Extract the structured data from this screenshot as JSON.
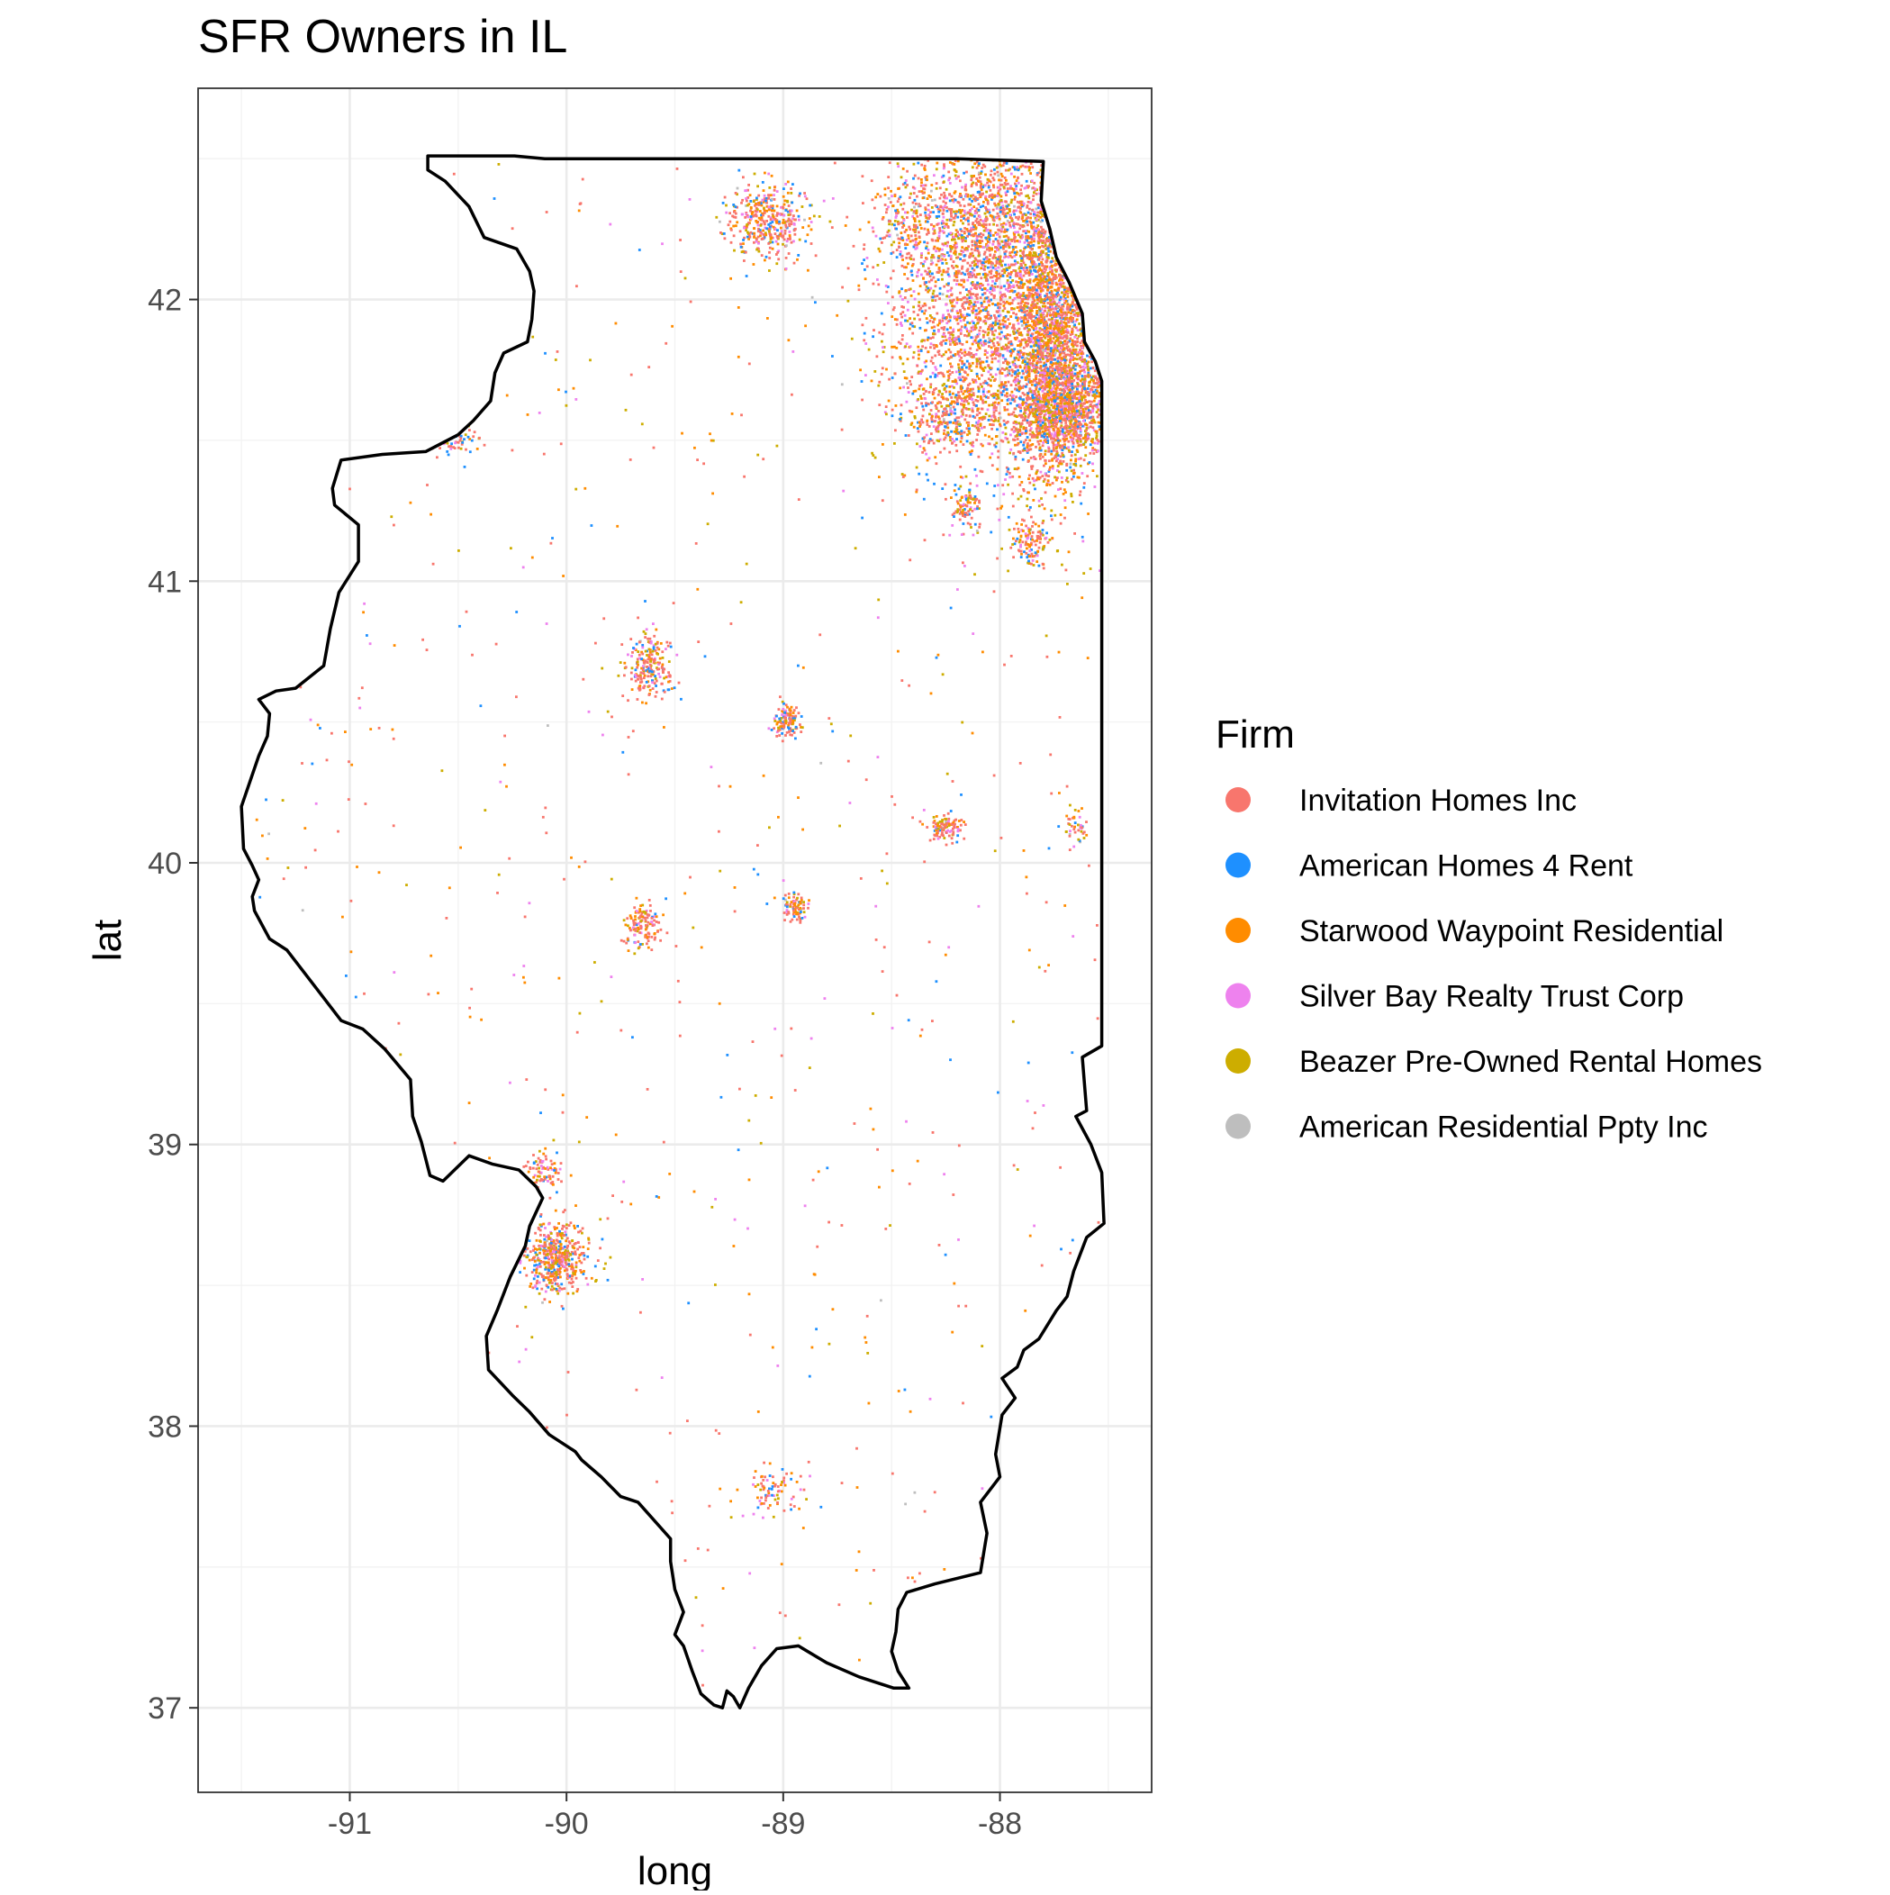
{
  "chart_data": {
    "type": "scatter",
    "title": "SFR Owners in IL",
    "xlabel": "long",
    "ylabel": "lat",
    "xlim": [
      -91.7,
      -87.3
    ],
    "ylim": [
      36.7,
      42.75
    ],
    "x_ticks": [
      -91,
      -90,
      -89,
      -88
    ],
    "y_ticks": [
      37,
      38,
      39,
      40,
      41,
      42
    ],
    "x_tick_labels": [
      "-91",
      "-90",
      "-89",
      "-88"
    ],
    "y_tick_labels": [
      "37",
      "38",
      "39",
      "40",
      "41",
      "42"
    ],
    "grid": true,
    "legend": {
      "title": "Firm",
      "position": "right",
      "entries": [
        {
          "name": "Invitation Homes Inc",
          "color": "#F8766D"
        },
        {
          "name": "American Homes 4 Rent",
          "color": "#1E90FF"
        },
        {
          "name": "Starwood Waypoint Residential",
          "color": "#FF8C00"
        },
        {
          "name": "Silver Bay Realty Trust Corp",
          "color": "#EE82EE"
        },
        {
          "name": "Beazer Pre-Owned Rental Homes",
          "color": "#CDAD00"
        },
        {
          "name": "American Residential Ppty Inc",
          "color": "#BEBEBE"
        }
      ]
    },
    "state_outline": [
      [
        -90.64,
        42.51
      ],
      [
        -90.24,
        42.51
      ],
      [
        -90.1,
        42.5
      ],
      [
        -89.7,
        42.5
      ],
      [
        -88.9,
        42.5
      ],
      [
        -88.2,
        42.5
      ],
      [
        -87.8,
        42.49
      ],
      [
        -87.81,
        42.35
      ],
      [
        -87.77,
        42.25
      ],
      [
        -87.74,
        42.15
      ],
      [
        -87.68,
        42.06
      ],
      [
        -87.62,
        41.95
      ],
      [
        -87.61,
        41.85
      ],
      [
        -87.56,
        41.78
      ],
      [
        -87.53,
        41.71
      ],
      [
        -87.53,
        41.5
      ],
      [
        -87.53,
        41.0
      ],
      [
        -87.53,
        40.5
      ],
      [
        -87.53,
        40.0
      ],
      [
        -87.53,
        39.6
      ],
      [
        -87.53,
        39.35
      ],
      [
        -87.62,
        39.31
      ],
      [
        -87.6,
        39.12
      ],
      [
        -87.65,
        39.1
      ],
      [
        -87.58,
        39.0
      ],
      [
        -87.53,
        38.9
      ],
      [
        -87.52,
        38.72
      ],
      [
        -87.6,
        38.67
      ],
      [
        -87.66,
        38.55
      ],
      [
        -87.69,
        38.46
      ],
      [
        -87.74,
        38.41
      ],
      [
        -87.82,
        38.31
      ],
      [
        -87.89,
        38.27
      ],
      [
        -87.92,
        38.21
      ],
      [
        -87.99,
        38.17
      ],
      [
        -87.93,
        38.1
      ],
      [
        -87.99,
        38.04
      ],
      [
        -88.02,
        37.9
      ],
      [
        -88.0,
        37.82
      ],
      [
        -88.09,
        37.73
      ],
      [
        -88.06,
        37.62
      ],
      [
        -88.09,
        37.48
      ],
      [
        -88.3,
        37.44
      ],
      [
        -88.43,
        37.41
      ],
      [
        -88.47,
        37.35
      ],
      [
        -88.48,
        37.27
      ],
      [
        -88.5,
        37.2
      ],
      [
        -88.47,
        37.13
      ],
      [
        -88.42,
        37.07
      ],
      [
        -88.49,
        37.07
      ],
      [
        -88.65,
        37.11
      ],
      [
        -88.8,
        37.16
      ],
      [
        -88.93,
        37.22
      ],
      [
        -89.03,
        37.21
      ],
      [
        -89.1,
        37.15
      ],
      [
        -89.16,
        37.07
      ],
      [
        -89.2,
        37.0
      ],
      [
        -89.23,
        37.04
      ],
      [
        -89.26,
        37.06
      ],
      [
        -89.28,
        37.0
      ],
      [
        -89.32,
        37.01
      ],
      [
        -89.38,
        37.05
      ],
      [
        -89.42,
        37.13
      ],
      [
        -89.46,
        37.22
      ],
      [
        -89.5,
        37.26
      ],
      [
        -89.46,
        37.34
      ],
      [
        -89.5,
        37.42
      ],
      [
        -89.52,
        37.52
      ],
      [
        -89.52,
        37.6
      ],
      [
        -89.67,
        37.73
      ],
      [
        -89.75,
        37.75
      ],
      [
        -89.84,
        37.82
      ],
      [
        -89.93,
        37.88
      ],
      [
        -89.96,
        37.91
      ],
      [
        -90.08,
        37.97
      ],
      [
        -90.17,
        38.05
      ],
      [
        -90.25,
        38.11
      ],
      [
        -90.36,
        38.2
      ],
      [
        -90.37,
        38.32
      ],
      [
        -90.32,
        38.41
      ],
      [
        -90.26,
        38.53
      ],
      [
        -90.19,
        38.64
      ],
      [
        -90.17,
        38.71
      ],
      [
        -90.11,
        38.81
      ],
      [
        -90.14,
        38.85
      ],
      [
        -90.22,
        38.91
      ],
      [
        -90.34,
        38.93
      ],
      [
        -90.45,
        38.96
      ],
      [
        -90.57,
        38.87
      ],
      [
        -90.63,
        38.89
      ],
      [
        -90.67,
        39.01
      ],
      [
        -90.71,
        39.1
      ],
      [
        -90.72,
        39.23
      ],
      [
        -90.84,
        39.34
      ],
      [
        -90.94,
        39.41
      ],
      [
        -91.04,
        39.44
      ],
      [
        -91.15,
        39.55
      ],
      [
        -91.29,
        39.69
      ],
      [
        -91.37,
        39.73
      ],
      [
        -91.44,
        39.83
      ],
      [
        -91.45,
        39.88
      ],
      [
        -91.42,
        39.94
      ],
      [
        -91.45,
        39.99
      ],
      [
        -91.49,
        40.05
      ],
      [
        -91.5,
        40.2
      ],
      [
        -91.42,
        40.38
      ],
      [
        -91.38,
        40.45
      ],
      [
        -91.37,
        40.53
      ],
      [
        -91.42,
        40.58
      ],
      [
        -91.34,
        40.61
      ],
      [
        -91.25,
        40.62
      ],
      [
        -91.12,
        40.7
      ],
      [
        -91.09,
        40.83
      ],
      [
        -91.05,
        40.96
      ],
      [
        -90.96,
        41.07
      ],
      [
        -90.96,
        41.2
      ],
      [
        -91.07,
        41.27
      ],
      [
        -91.08,
        41.33
      ],
      [
        -91.04,
        41.43
      ],
      [
        -90.85,
        41.45
      ],
      [
        -90.65,
        41.46
      ],
      [
        -90.5,
        41.52
      ],
      [
        -90.43,
        41.57
      ],
      [
        -90.35,
        41.64
      ],
      [
        -90.33,
        41.74
      ],
      [
        -90.29,
        41.81
      ],
      [
        -90.18,
        41.85
      ],
      [
        -90.16,
        41.93
      ],
      [
        -90.15,
        42.03
      ],
      [
        -90.17,
        42.1
      ],
      [
        -90.23,
        42.18
      ],
      [
        -90.38,
        42.22
      ],
      [
        -90.45,
        42.33
      ],
      [
        -90.56,
        42.42
      ],
      [
        -90.64,
        42.46
      ],
      [
        -90.64,
        42.51
      ]
    ],
    "clusters": [
      {
        "x": -87.76,
        "y": 41.86,
        "sx": 0.1,
        "sy": 0.26,
        "n": 2200
      },
      {
        "x": -88.05,
        "y": 41.95,
        "sx": 0.24,
        "sy": 0.28,
        "n": 2500
      },
      {
        "x": -87.68,
        "y": 41.62,
        "sx": 0.12,
        "sy": 0.09,
        "n": 900
      },
      {
        "x": -88.2,
        "y": 41.6,
        "sx": 0.12,
        "sy": 0.07,
        "n": 300
      },
      {
        "x": -88.05,
        "y": 42.3,
        "sx": 0.18,
        "sy": 0.15,
        "n": 700
      },
      {
        "x": -88.16,
        "y": 41.26,
        "sx": 0.04,
        "sy": 0.04,
        "n": 80
      },
      {
        "x": -87.86,
        "y": 41.14,
        "sx": 0.04,
        "sy": 0.04,
        "n": 110
      },
      {
        "x": -89.07,
        "y": 42.28,
        "sx": 0.09,
        "sy": 0.07,
        "n": 400
      },
      {
        "x": -90.54,
        "y": 41.5,
        "sx": 0.06,
        "sy": 0.025,
        "n": 90
      },
      {
        "x": -89.62,
        "y": 40.7,
        "sx": 0.05,
        "sy": 0.06,
        "n": 220
      },
      {
        "x": -88.98,
        "y": 40.5,
        "sx": 0.03,
        "sy": 0.03,
        "n": 110
      },
      {
        "x": -88.25,
        "y": 40.12,
        "sx": 0.04,
        "sy": 0.025,
        "n": 100
      },
      {
        "x": -88.95,
        "y": 39.84,
        "sx": 0.03,
        "sy": 0.025,
        "n": 80
      },
      {
        "x": -89.65,
        "y": 39.78,
        "sx": 0.04,
        "sy": 0.04,
        "n": 130
      },
      {
        "x": -90.05,
        "y": 38.6,
        "sx": 0.07,
        "sy": 0.06,
        "n": 500
      },
      {
        "x": -90.1,
        "y": 38.9,
        "sx": 0.04,
        "sy": 0.03,
        "n": 80
      },
      {
        "x": -89.05,
        "y": 37.77,
        "sx": 0.07,
        "sy": 0.04,
        "n": 80
      },
      {
        "x": -87.65,
        "y": 40.13,
        "sx": 0.02,
        "sy": 0.03,
        "n": 40
      },
      {
        "x": -88.4,
        "y": 42.25,
        "sx": 0.12,
        "sy": 0.1,
        "n": 200
      }
    ]
  }
}
